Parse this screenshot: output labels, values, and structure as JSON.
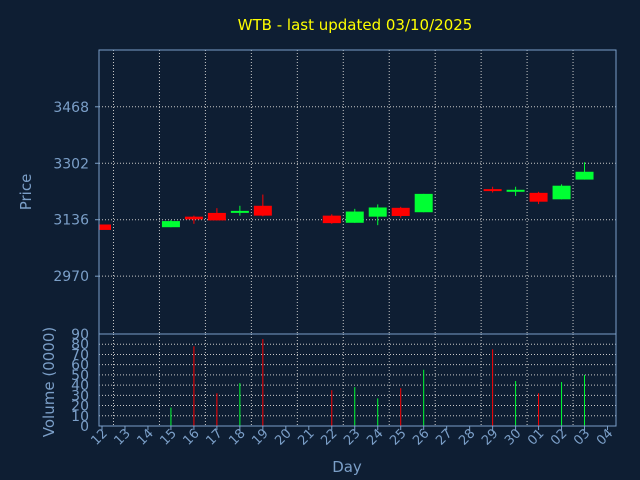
{
  "chart_data": {
    "type": "candlestick",
    "title": "WTB - last updated 03/10/2025",
    "xlabel": "Day",
    "price_panel": {
      "ylabel": "Price",
      "yticks": [
        2970,
        3136,
        3302,
        3468
      ],
      "ylim": [
        2800,
        3635
      ]
    },
    "volume_panel": {
      "ylabel": "Volume (0000)",
      "yticks": [
        0,
        10,
        20,
        30,
        40,
        50,
        60,
        70,
        80,
        90
      ],
      "ylim": [
        0,
        90
      ]
    },
    "categories": [
      "12",
      "13",
      "14",
      "15",
      "16",
      "17",
      "18",
      "19",
      "20",
      "21",
      "22",
      "23",
      "24",
      "25",
      "26",
      "27",
      "28",
      "29",
      "30",
      "01",
      "02",
      "03",
      "04"
    ],
    "candles": [
      {
        "day": "12",
        "open": 3122,
        "high": 3122,
        "low": 3106,
        "close": 3106
      },
      {
        "day": "15",
        "open": 3114,
        "high": 3135,
        "low": 3114,
        "close": 3132
      },
      {
        "day": "16",
        "open": 3145,
        "high": 3148,
        "low": 3124,
        "close": 3137
      },
      {
        "day": "17",
        "open": 3156,
        "high": 3170,
        "low": 3134,
        "close": 3134
      },
      {
        "day": "18",
        "open": 3158,
        "high": 3177,
        "low": 3148,
        "close": 3162
      },
      {
        "day": "19",
        "open": 3177,
        "high": 3210,
        "low": 3146,
        "close": 3148
      },
      {
        "day": "22",
        "open": 3148,
        "high": 3152,
        "low": 3124,
        "close": 3126
      },
      {
        "day": "23",
        "open": 3127,
        "high": 3168,
        "low": 3127,
        "close": 3160
      },
      {
        "day": "24",
        "open": 3145,
        "high": 3181,
        "low": 3120,
        "close": 3172
      },
      {
        "day": "25",
        "open": 3171,
        "high": 3174,
        "low": 3142,
        "close": 3147
      },
      {
        "day": "26",
        "open": 3158,
        "high": 3212,
        "low": 3158,
        "close": 3212
      },
      {
        "day": "29",
        "open": 3226,
        "high": 3233,
        "low": 3216,
        "close": 3223
      },
      {
        "day": "30",
        "open": 3222,
        "high": 3233,
        "low": 3206,
        "close": 3224
      },
      {
        "day": "01",
        "open": 3215,
        "high": 3218,
        "low": 3182,
        "close": 3189
      },
      {
        "day": "02",
        "open": 3196,
        "high": 3240,
        "low": 3196,
        "close": 3236
      },
      {
        "day": "03",
        "open": 3254,
        "high": 3305,
        "low": 3254,
        "close": 3277
      }
    ],
    "volume": [
      {
        "day": "15",
        "value": 18
      },
      {
        "day": "16",
        "value": 78
      },
      {
        "day": "17",
        "value": 32
      },
      {
        "day": "18",
        "value": 42
      },
      {
        "day": "19",
        "value": 85
      },
      {
        "day": "22",
        "value": 35
      },
      {
        "day": "23",
        "value": 38
      },
      {
        "day": "24",
        "value": 27
      },
      {
        "day": "25",
        "value": 37
      },
      {
        "day": "26",
        "value": 55
      },
      {
        "day": "29",
        "value": 75
      },
      {
        "day": "30",
        "value": 44
      },
      {
        "day": "01",
        "value": 32
      },
      {
        "day": "02",
        "value": 43
      },
      {
        "day": "03",
        "value": 50
      }
    ],
    "colors": {
      "up": "#00ff33",
      "down": "#ff0000",
      "grid": "#c8c8c8",
      "frame": "#7b9fc8",
      "background": "#0e1e33",
      "title": "#ffff00"
    },
    "grid": true
  }
}
